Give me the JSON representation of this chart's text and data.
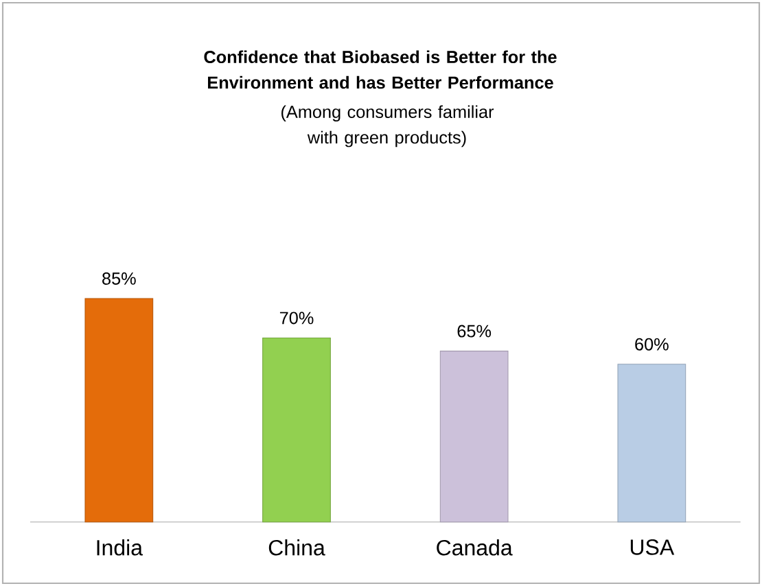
{
  "chart_data": {
    "type": "bar",
    "title": "Confidence that Biobased is Better for the Environment and has Better Performance",
    "subtitle": "(Among consumers familiar with green products)",
    "categories": [
      "India",
      "China",
      "Canada",
      "USA"
    ],
    "values": [
      85,
      70,
      65,
      60
    ],
    "value_labels": [
      "85%",
      "70%",
      "65%",
      "60%"
    ],
    "colors": [
      "#e46c0a",
      "#92d050",
      "#ccc1da",
      "#b9cde5"
    ]
  }
}
